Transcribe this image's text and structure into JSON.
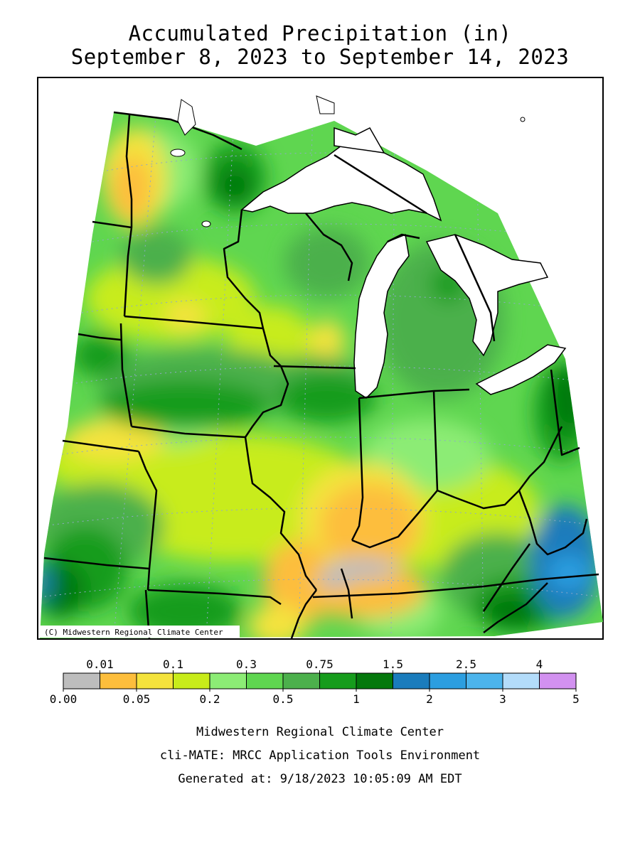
{
  "title": {
    "line1": "Accumulated Precipitation (in)",
    "line2": "September 8, 2023 to September 14, 2023"
  },
  "map": {
    "copyright": "(C) Midwestern Regional Climate Center",
    "colors": {
      "background": "#ffffff",
      "lake_fill": "#ffffff",
      "border": "#000000",
      "grid": "#8fa9c8"
    }
  },
  "legend": {
    "bins": [
      {
        "low": "0.00",
        "high": "0.01",
        "color": "#bdbdbd"
      },
      {
        "low": "0.01",
        "high": "0.05",
        "color": "#fdbe3c"
      },
      {
        "low": "0.05",
        "high": "0.1",
        "color": "#f4e33c"
      },
      {
        "low": "0.1",
        "high": "0.2",
        "color": "#c8ec1a"
      },
      {
        "low": "0.2",
        "high": "0.3",
        "color": "#8cec75"
      },
      {
        "low": "0.3",
        "high": "0.5",
        "color": "#5fd650"
      },
      {
        "low": "0.5",
        "high": "0.75",
        "color": "#4cb04c"
      },
      {
        "low": "0.75",
        "high": "1",
        "color": "#169c1c"
      },
      {
        "low": "1",
        "high": "1.5",
        "color": "#04780c"
      },
      {
        "low": "1.5",
        "high": "2",
        "color": "#1a7cbc"
      },
      {
        "low": "2",
        "high": "2.5",
        "color": "#2c9ee0"
      },
      {
        "low": "2.5",
        "high": "3",
        "color": "#4cb4ec"
      },
      {
        "low": "3",
        "high": "4",
        "color": "#b3dcfa"
      },
      {
        "low": "4",
        "high": "5",
        "color": "#d291f0"
      }
    ],
    "labels_top": [
      "0.01",
      "0.1",
      "0.3",
      "0.75",
      "1.5",
      "2.5",
      "4"
    ],
    "labels_bottom": [
      "0.00",
      "0.05",
      "0.2",
      "0.5",
      "1",
      "2",
      "3",
      "5"
    ]
  },
  "credits": {
    "line1": "Midwestern Regional Climate Center",
    "line2": "cli-MATE: MRCC Application Tools Environment",
    "line3": "Generated at: 9/18/2023 10:05:09 AM EDT"
  }
}
